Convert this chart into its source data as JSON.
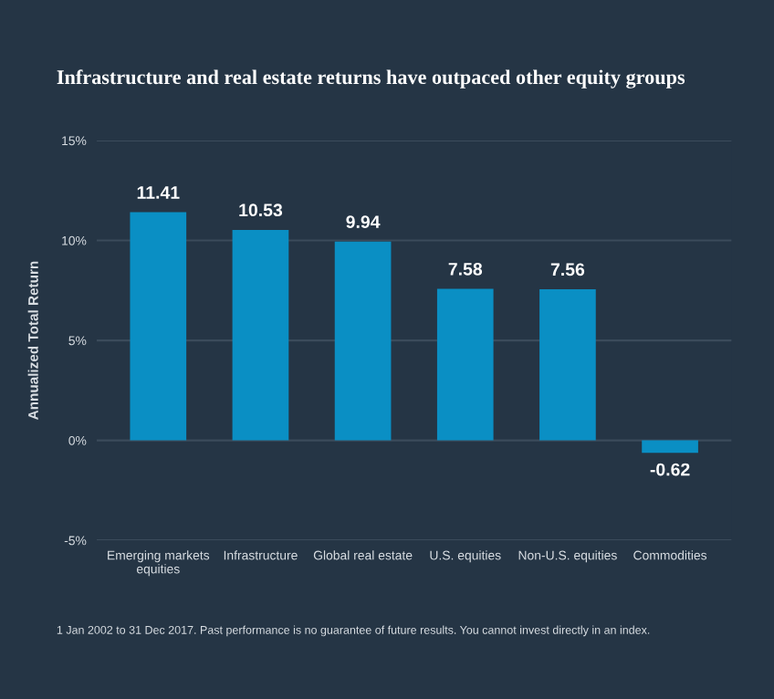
{
  "chart_data": {
    "type": "bar",
    "title": "Infrastructure and real estate returns have outpaced other equity groups",
    "ylabel": "Annualized Total Return",
    "categories": [
      "Emerging markets\nequities",
      "Infrastructure",
      "Global real estate",
      "U.S. equities",
      "Non-U.S. equities",
      "Commodities"
    ],
    "series": [
      {
        "color": "#0a8fc4",
        "values": [
          11.41,
          10.53,
          9.94,
          7.58,
          7.56,
          -0.62
        ]
      }
    ],
    "data_labels": true,
    "ylim": [
      -5,
      15
    ],
    "yticks": [
      {
        "value": -5,
        "label": "-5%"
      },
      {
        "value": 0,
        "label": "0%"
      },
      {
        "value": 5,
        "label": "5%"
      },
      {
        "value": 10,
        "label": "10%"
      },
      {
        "value": 15,
        "label": "15%"
      }
    ],
    "grid": "y",
    "annotations": [
      "1 Jan 2002 to 31 Dec 2017. Past performance is no guarantee of future results. You cannot invest directly in an index."
    ]
  }
}
